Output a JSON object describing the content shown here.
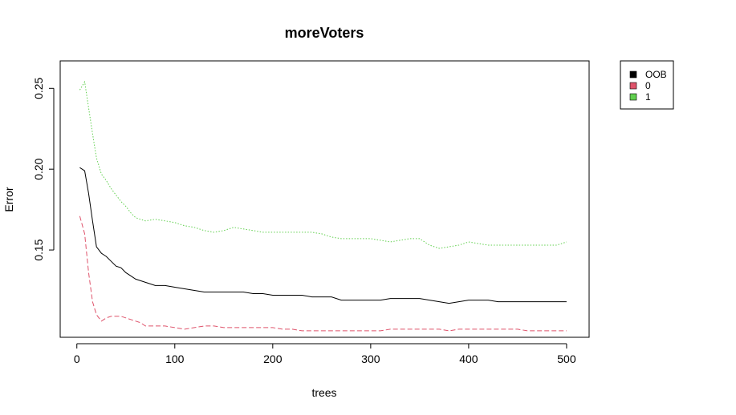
{
  "chart_data": {
    "type": "line",
    "title": "moreVoters",
    "xlabel": "trees",
    "ylabel": "Error",
    "xlim": [
      -17,
      523
    ],
    "ylim": [
      0.096,
      0.267
    ],
    "x_ticks": [
      0,
      100,
      200,
      300,
      400,
      500
    ],
    "y_ticks": [
      0.15,
      0.2,
      0.25
    ],
    "grid": false,
    "legend_position": "top-right-outside",
    "legend": [
      "OOB",
      "0",
      "1"
    ],
    "series": [
      {
        "name": "OOB",
        "color": "#000000",
        "dash": "solid",
        "points": [
          [
            3,
            0.201
          ],
          [
            8,
            0.199
          ],
          [
            12,
            0.185
          ],
          [
            16,
            0.168
          ],
          [
            20,
            0.152
          ],
          [
            25,
            0.148
          ],
          [
            30,
            0.146
          ],
          [
            35,
            0.143
          ],
          [
            40,
            0.14
          ],
          [
            45,
            0.139
          ],
          [
            50,
            0.136
          ],
          [
            55,
            0.134
          ],
          [
            60,
            0.132
          ],
          [
            65,
            0.131
          ],
          [
            70,
            0.13
          ],
          [
            80,
            0.128
          ],
          [
            90,
            0.128
          ],
          [
            100,
            0.127
          ],
          [
            110,
            0.126
          ],
          [
            120,
            0.125
          ],
          [
            130,
            0.124
          ],
          [
            140,
            0.124
          ],
          [
            150,
            0.124
          ],
          [
            160,
            0.124
          ],
          [
            170,
            0.124
          ],
          [
            180,
            0.123
          ],
          [
            190,
            0.123
          ],
          [
            200,
            0.122
          ],
          [
            210,
            0.122
          ],
          [
            220,
            0.122
          ],
          [
            230,
            0.122
          ],
          [
            240,
            0.121
          ],
          [
            250,
            0.121
          ],
          [
            260,
            0.121
          ],
          [
            270,
            0.119
          ],
          [
            280,
            0.119
          ],
          [
            290,
            0.119
          ],
          [
            300,
            0.119
          ],
          [
            310,
            0.119
          ],
          [
            320,
            0.12
          ],
          [
            330,
            0.12
          ],
          [
            340,
            0.12
          ],
          [
            350,
            0.12
          ],
          [
            360,
            0.119
          ],
          [
            370,
            0.118
          ],
          [
            380,
            0.117
          ],
          [
            390,
            0.118
          ],
          [
            400,
            0.119
          ],
          [
            410,
            0.119
          ],
          [
            420,
            0.119
          ],
          [
            430,
            0.118
          ],
          [
            440,
            0.118
          ],
          [
            450,
            0.118
          ],
          [
            460,
            0.118
          ],
          [
            470,
            0.118
          ],
          [
            480,
            0.118
          ],
          [
            490,
            0.118
          ],
          [
            500,
            0.118
          ]
        ]
      },
      {
        "name": "0",
        "color": "#DF536B",
        "dash": "dashed",
        "points": [
          [
            3,
            0.171
          ],
          [
            8,
            0.16
          ],
          [
            12,
            0.136
          ],
          [
            16,
            0.118
          ],
          [
            20,
            0.11
          ],
          [
            25,
            0.106
          ],
          [
            30,
            0.108
          ],
          [
            35,
            0.109
          ],
          [
            40,
            0.109
          ],
          [
            45,
            0.109
          ],
          [
            50,
            0.108
          ],
          [
            55,
            0.107
          ],
          [
            60,
            0.106
          ],
          [
            65,
            0.105
          ],
          [
            70,
            0.103
          ],
          [
            80,
            0.103
          ],
          [
            90,
            0.103
          ],
          [
            100,
            0.102
          ],
          [
            110,
            0.101
          ],
          [
            120,
            0.102
          ],
          [
            130,
            0.103
          ],
          [
            140,
            0.103
          ],
          [
            150,
            0.102
          ],
          [
            160,
            0.102
          ],
          [
            170,
            0.102
          ],
          [
            180,
            0.102
          ],
          [
            190,
            0.102
          ],
          [
            200,
            0.102
          ],
          [
            210,
            0.101
          ],
          [
            220,
            0.101
          ],
          [
            230,
            0.1
          ],
          [
            240,
            0.1
          ],
          [
            250,
            0.1
          ],
          [
            260,
            0.1
          ],
          [
            270,
            0.1
          ],
          [
            280,
            0.1
          ],
          [
            290,
            0.1
          ],
          [
            300,
            0.1
          ],
          [
            310,
            0.1
          ],
          [
            320,
            0.101
          ],
          [
            330,
            0.101
          ],
          [
            340,
            0.101
          ],
          [
            350,
            0.101
          ],
          [
            360,
            0.101
          ],
          [
            370,
            0.101
          ],
          [
            380,
            0.1
          ],
          [
            390,
            0.101
          ],
          [
            400,
            0.101
          ],
          [
            410,
            0.101
          ],
          [
            420,
            0.101
          ],
          [
            430,
            0.101
          ],
          [
            440,
            0.101
          ],
          [
            450,
            0.101
          ],
          [
            460,
            0.1
          ],
          [
            470,
            0.1
          ],
          [
            480,
            0.1
          ],
          [
            490,
            0.1
          ],
          [
            500,
            0.1
          ]
        ]
      },
      {
        "name": "1",
        "color": "#61D04F",
        "dash": "dotted",
        "points": [
          [
            3,
            0.249
          ],
          [
            8,
            0.254
          ],
          [
            12,
            0.238
          ],
          [
            16,
            0.222
          ],
          [
            20,
            0.207
          ],
          [
            25,
            0.197
          ],
          [
            30,
            0.193
          ],
          [
            35,
            0.188
          ],
          [
            40,
            0.184
          ],
          [
            45,
            0.18
          ],
          [
            50,
            0.177
          ],
          [
            55,
            0.173
          ],
          [
            60,
            0.17
          ],
          [
            65,
            0.169
          ],
          [
            70,
            0.168
          ],
          [
            80,
            0.169
          ],
          [
            90,
            0.168
          ],
          [
            100,
            0.167
          ],
          [
            110,
            0.165
          ],
          [
            120,
            0.164
          ],
          [
            130,
            0.162
          ],
          [
            140,
            0.161
          ],
          [
            150,
            0.162
          ],
          [
            160,
            0.164
          ],
          [
            170,
            0.163
          ],
          [
            180,
            0.162
          ],
          [
            190,
            0.161
          ],
          [
            200,
            0.161
          ],
          [
            210,
            0.161
          ],
          [
            220,
            0.161
          ],
          [
            230,
            0.161
          ],
          [
            240,
            0.161
          ],
          [
            250,
            0.16
          ],
          [
            260,
            0.158
          ],
          [
            270,
            0.157
          ],
          [
            280,
            0.157
          ],
          [
            290,
            0.157
          ],
          [
            300,
            0.157
          ],
          [
            310,
            0.156
          ],
          [
            320,
            0.155
          ],
          [
            330,
            0.156
          ],
          [
            340,
            0.157
          ],
          [
            350,
            0.157
          ],
          [
            360,
            0.153
          ],
          [
            370,
            0.151
          ],
          [
            380,
            0.152
          ],
          [
            390,
            0.153
          ],
          [
            400,
            0.155
          ],
          [
            410,
            0.154
          ],
          [
            420,
            0.153
          ],
          [
            430,
            0.153
          ],
          [
            440,
            0.153
          ],
          [
            450,
            0.153
          ],
          [
            460,
            0.153
          ],
          [
            470,
            0.153
          ],
          [
            480,
            0.153
          ],
          [
            490,
            0.153
          ],
          [
            500,
            0.155
          ]
        ]
      }
    ]
  }
}
